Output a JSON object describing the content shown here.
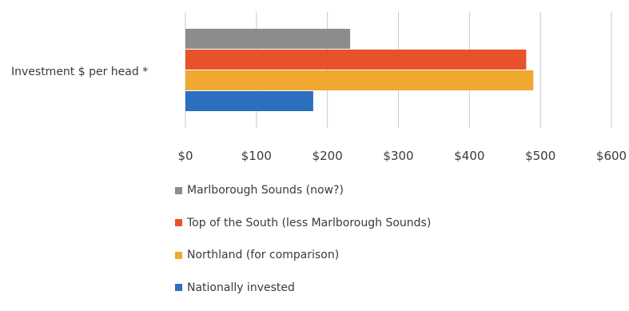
{
  "chart_data": {
    "type": "bar",
    "orientation": "horizontal",
    "categories": [
      "Investment $ per head *"
    ],
    "series": [
      {
        "name": "Marlborough Sounds (now?)",
        "values": [
          232
        ],
        "color": "#8c8c8c"
      },
      {
        "name": "Top of the South (less Marlborough Sounds)",
        "values": [
          480
        ],
        "color": "#e8522a"
      },
      {
        "name": "Northland (for comparison)",
        "values": [
          490
        ],
        "color": "#f0a830"
      },
      {
        "name": "Nationally invested",
        "values": [
          180
        ],
        "color": "#2a6fc0"
      }
    ],
    "xlim": [
      0,
      600
    ],
    "x_ticks": [
      "$0",
      "$100",
      "$200",
      "$300",
      "$400",
      "$500",
      "$600"
    ],
    "x_tick_values": [
      0,
      100,
      200,
      300,
      400,
      500,
      600
    ],
    "grid": true,
    "legend_position": "bottom"
  }
}
